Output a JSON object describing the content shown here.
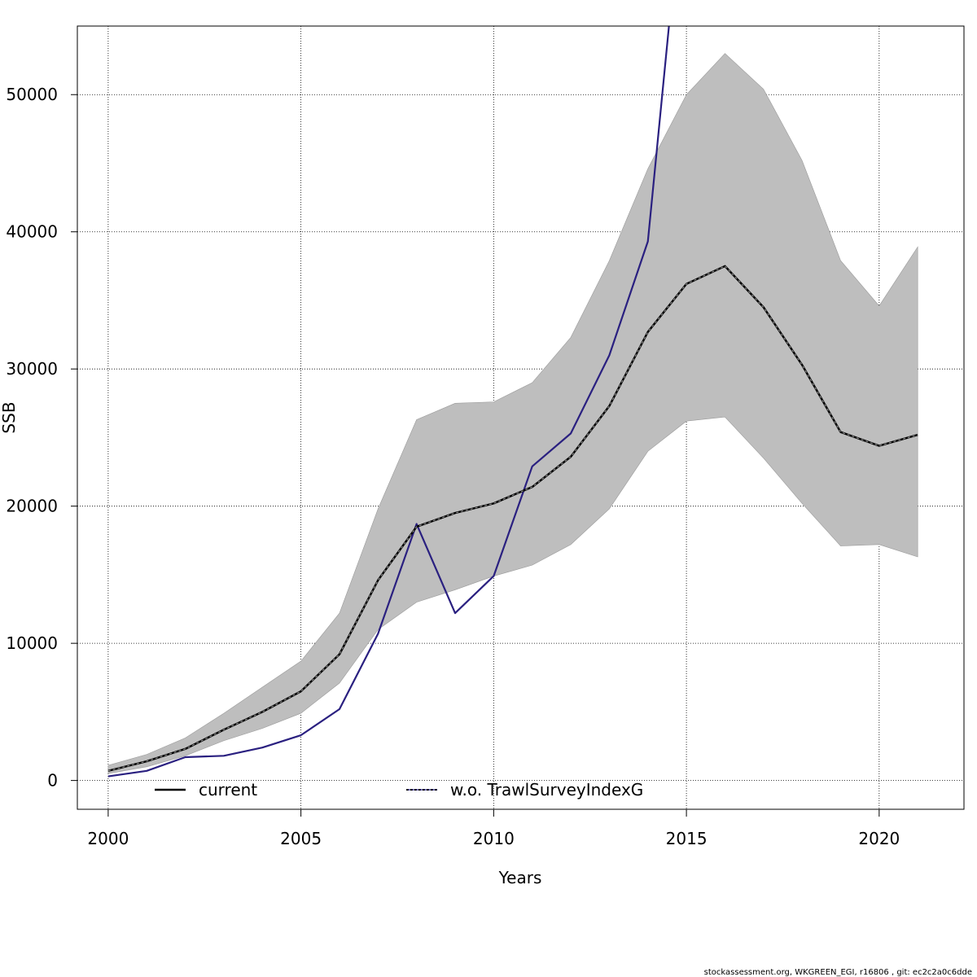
{
  "chart_data": {
    "type": "line",
    "title": "",
    "xlabel": "Years",
    "ylabel": "SSB",
    "xlim": [
      1999.2,
      2022.2
    ],
    "ylim": [
      -2100,
      55000
    ],
    "grid": true,
    "x_ticks": [
      2000,
      2005,
      2010,
      2015,
      2020
    ],
    "x_tick_labels": [
      "2000",
      "2005",
      "2010",
      "2015",
      "2020"
    ],
    "y_ticks": [
      0,
      10000,
      20000,
      30000,
      40000,
      50000
    ],
    "y_tick_labels": [
      "0",
      "10000",
      "20000",
      "30000",
      "40000",
      "50000"
    ],
    "x": [
      2000,
      2001,
      2002,
      2003,
      2004,
      2005,
      2006,
      2007,
      2008,
      2009,
      2010,
      2011,
      2012,
      2013,
      2014,
      2015,
      2016,
      2017,
      2018,
      2019,
      2020,
      2021
    ],
    "band": {
      "name": "confidence interval",
      "color": "#bebebe",
      "lower": [
        500,
        1000,
        1800,
        2900,
        3800,
        4900,
        7100,
        11000,
        13000,
        13900,
        14900,
        15700,
        17200,
        19800,
        24000,
        26200,
        26500,
        23500,
        20200,
        17100,
        17200,
        16300
      ],
      "upper": [
        1100,
        1900,
        3100,
        4900,
        6800,
        8700,
        12200,
        19800,
        26300,
        27500,
        27600,
        29000,
        32300,
        37900,
        44600,
        50000,
        53000,
        50400,
        45200,
        37900,
        34600,
        38900
      ]
    },
    "series": [
      {
        "name": "current",
        "color": "#000000",
        "values": [
          700,
          1400,
          2300,
          3700,
          5000,
          6500,
          9200,
          14600,
          18500,
          19500,
          20200,
          21400,
          23600,
          27300,
          32700,
          36200,
          37500,
          34500,
          30300,
          25400,
          24400,
          25200
        ]
      },
      {
        "name": "w.o. TrawlSurveyIndexG",
        "color": "#2a2080",
        "values": [
          300,
          700,
          1700,
          1800,
          2400,
          3300,
          5200,
          10700,
          18700,
          12200,
          14900,
          22900,
          25300,
          31000,
          39300,
          68000,
          null,
          null,
          null,
          null,
          null,
          null
        ]
      }
    ],
    "legend": {
      "position": "bottom",
      "entries": [
        "current",
        "w.o. TrawlSurveyIndexG"
      ]
    }
  },
  "footer": {
    "text": "stockassessment.org, WKGREEN_EGI, r16806 , git: ec2c2a0c6dde"
  }
}
